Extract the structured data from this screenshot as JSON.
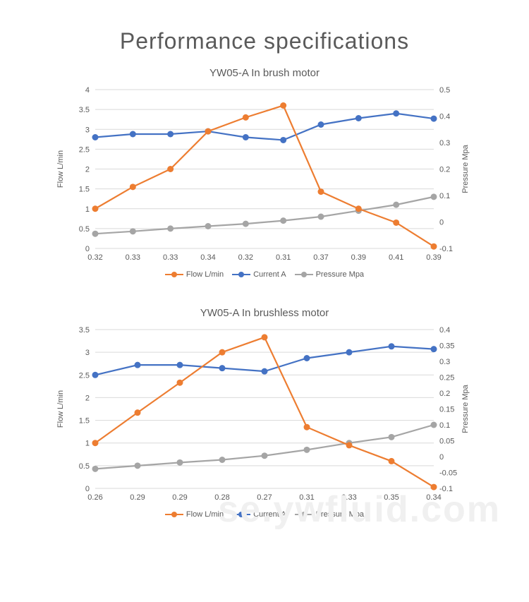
{
  "page": {
    "title": "Performance specifications",
    "watermark": "se.ywfluid.com"
  },
  "colors": {
    "flow": "#ed7d31",
    "current": "#4472c4",
    "pressure": "#a5a5a5",
    "grid": "#d9d9d9",
    "axis": "#d9d9d9",
    "text": "#5a5a5a",
    "bg": "#ffffff"
  },
  "legend_labels": {
    "flow": "Flow L/min",
    "current": "Current A",
    "pressure": "Pressure Mpa"
  },
  "axis_labels": {
    "left": "Flow  L/min",
    "right": "Pressure  Mpa"
  },
  "charts": [
    {
      "title": "YW05-A In brush motor",
      "x_labels": [
        "0.32",
        "0.33",
        "0.33",
        "0.34",
        "0.32",
        "0.31",
        "0.37",
        "0.39",
        "0.41",
        "0.39"
      ],
      "y_left": {
        "min": 0,
        "max": 4,
        "step": 0.5
      },
      "y_right": {
        "min": -0.1,
        "max": 0.5,
        "step": 0.1
      },
      "series": {
        "flow": [
          1.0,
          1.55,
          2.0,
          2.95,
          3.3,
          3.6,
          1.43,
          1.0,
          0.65,
          0.05
        ],
        "current": [
          2.8,
          2.88,
          2.88,
          2.95,
          2.8,
          2.73,
          3.12,
          3.28,
          3.4,
          3.27
        ],
        "pressure": [
          0.37,
          0.43,
          0.5,
          0.56,
          0.62,
          0.7,
          0.8,
          0.95,
          1.1,
          1.3
        ]
      },
      "marker_radius": 4.5,
      "line_width": 2.2
    },
    {
      "title": "YW05-A In brushless motor",
      "x_labels": [
        "0.26",
        "0.29",
        "0.29",
        "0.28",
        "0.27",
        "0.31",
        "0.33",
        "0.35",
        "0.34"
      ],
      "y_left": {
        "min": 0,
        "max": 3.5,
        "step": 0.5
      },
      "y_right": {
        "min": -0.1,
        "max": 0.4,
        "step": 0.05
      },
      "series": {
        "flow": [
          1.0,
          1.67,
          2.33,
          3.0,
          3.33,
          1.35,
          0.95,
          0.6,
          0.03
        ],
        "current": [
          2.5,
          2.72,
          2.72,
          2.65,
          2.58,
          2.87,
          3.0,
          3.13,
          3.07
        ],
        "pressure": [
          0.43,
          0.5,
          0.57,
          0.63,
          0.72,
          0.85,
          1.0,
          1.13,
          1.4
        ]
      },
      "marker_radius": 4.5,
      "line_width": 2.2
    }
  ]
}
